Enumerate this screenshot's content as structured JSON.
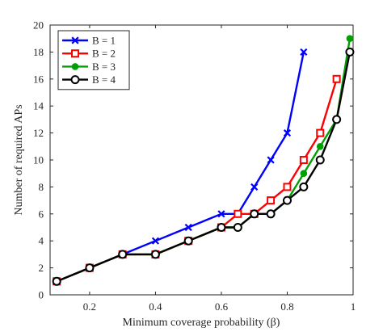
{
  "chart_data": {
    "type": "line",
    "xlabel": "Minimum coverage probability (β)",
    "ylabel": "Number of required APs",
    "xlim": [
      0.08,
      1.0
    ],
    "ylim": [
      0,
      20
    ],
    "xticks": [
      0.2,
      0.4,
      0.6,
      0.8,
      1
    ],
    "yticks": [
      0,
      2,
      4,
      6,
      8,
      10,
      12,
      14,
      16,
      18,
      20
    ],
    "xtick_labels": [
      "0.2",
      "0.4",
      "0.6",
      "0.8",
      "1"
    ],
    "ytick_labels": [
      "0",
      "2",
      "4",
      "6",
      "8",
      "10",
      "12",
      "14",
      "16",
      "18",
      "20"
    ],
    "grid": false,
    "legend_position": "top-left",
    "series": [
      {
        "name": "B = 1",
        "color": "#0000ff",
        "marker": "x",
        "x": [
          0.1,
          0.2,
          0.3,
          0.4,
          0.5,
          0.6,
          0.65,
          0.7,
          0.75,
          0.8,
          0.85
        ],
        "y": [
          1,
          2,
          3,
          4,
          5,
          6,
          6,
          8,
          10,
          12,
          18
        ]
      },
      {
        "name": "B = 2",
        "color": "#ff0000",
        "marker": "square",
        "x": [
          0.1,
          0.2,
          0.3,
          0.4,
          0.5,
          0.6,
          0.65,
          0.7,
          0.75,
          0.8,
          0.85,
          0.9,
          0.95
        ],
        "y": [
          1,
          2,
          3,
          3,
          4,
          5,
          6,
          6,
          7,
          8,
          10,
          12,
          16
        ]
      },
      {
        "name": "B = 3",
        "color": "#00a000",
        "marker": "filled-circle",
        "x": [
          0.1,
          0.2,
          0.3,
          0.4,
          0.5,
          0.6,
          0.65,
          0.7,
          0.75,
          0.8,
          0.85,
          0.9,
          0.95,
          0.99
        ],
        "y": [
          1,
          2,
          3,
          3,
          4,
          5,
          5,
          6,
          6,
          7,
          9,
          11,
          13,
          19
        ]
      },
      {
        "name": "B = 4",
        "color": "#000000",
        "marker": "circle",
        "x": [
          0.1,
          0.2,
          0.3,
          0.4,
          0.5,
          0.6,
          0.65,
          0.7,
          0.75,
          0.8,
          0.85,
          0.9,
          0.95,
          0.99
        ],
        "y": [
          1,
          2,
          3,
          3,
          4,
          5,
          5,
          6,
          6,
          7,
          8,
          10,
          13,
          18
        ]
      }
    ]
  }
}
